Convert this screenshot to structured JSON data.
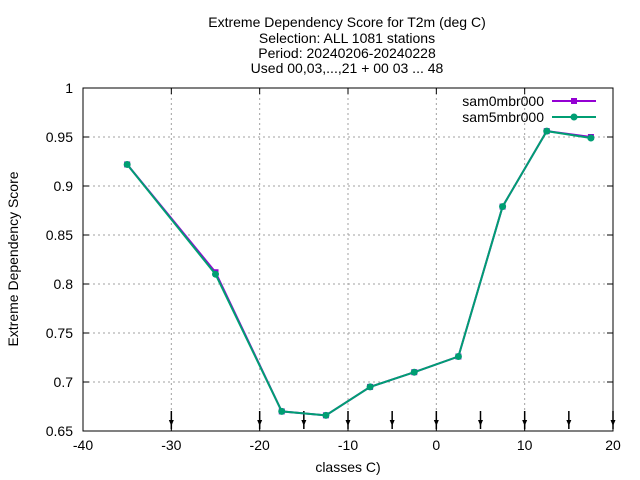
{
  "chart_data": {
    "type": "line",
    "title_lines": [
      "Extreme Dependency Score  for T2m (deg C)",
      "Selection: ALL   1081 stations",
      "Period: 20240206-20240228",
      "Used 00,03,...,21 + 00 03 ... 48"
    ],
    "xlabel": "classes C)",
    "ylabel": "Extreme Dependency Score",
    "xlim": [
      -40,
      20
    ],
    "ylim": [
      0.65,
      1.0
    ],
    "xticks": [
      -40,
      -30,
      -20,
      -10,
      0,
      10,
      20
    ],
    "yticks": [
      0.65,
      0.7,
      0.75,
      0.8,
      0.85,
      0.9,
      0.95,
      1.0
    ],
    "ytick_labels": [
      "0.65",
      "0.7",
      "0.75",
      "0.8",
      "0.85",
      "0.9",
      "0.95",
      "1"
    ],
    "grid": true,
    "legend_position": "top-right",
    "class_markers_x": [
      -30,
      -20,
      -15,
      -10,
      -5,
      0,
      5,
      10,
      15,
      20
    ],
    "series": [
      {
        "name": "sam0mbr000",
        "color": "#9400d3",
        "marker": "filled-square",
        "x": [
          -35,
          -25,
          -17.5,
          -12.5,
          -7.5,
          -2.5,
          2.5,
          7.5,
          12.5,
          17.5
        ],
        "y": [
          0.922,
          0.812,
          0.67,
          0.666,
          0.695,
          0.71,
          0.726,
          0.879,
          0.956,
          0.95
        ]
      },
      {
        "name": "sam5mbr000",
        "color": "#009e73",
        "marker": "filled-circle",
        "x": [
          -35,
          -25,
          -17.5,
          -12.5,
          -7.5,
          -2.5,
          2.5,
          7.5,
          12.5,
          17.5
        ],
        "y": [
          0.922,
          0.81,
          0.67,
          0.666,
          0.695,
          0.71,
          0.726,
          0.879,
          0.956,
          0.949
        ]
      }
    ]
  }
}
